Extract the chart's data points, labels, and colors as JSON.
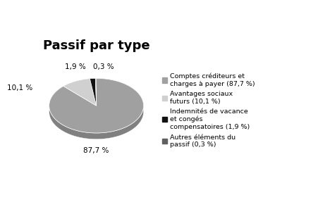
{
  "title": "Passif par type",
  "slices": [
    87.7,
    10.1,
    1.9,
    0.3
  ],
  "colors": [
    "#a0a0a0",
    "#d0d0d0",
    "#111111",
    "#606060"
  ],
  "side_colors": [
    "#808080",
    "#b0b0b0",
    "#080808",
    "#404040"
  ],
  "labels": [
    "87,7 %",
    "10,1 %",
    "1,9 %",
    "0,3 %"
  ],
  "legend_labels": [
    "Comptes créditeurs et\ncharges à payer (87,7 %)",
    "Avantages sociaux\nfuturs (10,1 %)",
    "Indemnités de vacance\net congés\ncompensatoires (1,9 %)",
    "Autres éléments du\npassif (0,3 %)"
  ],
  "background_color": "#ffffff",
  "title_fontsize": 13,
  "label_fontsize": 7.5,
  "legend_fontsize": 6.8
}
